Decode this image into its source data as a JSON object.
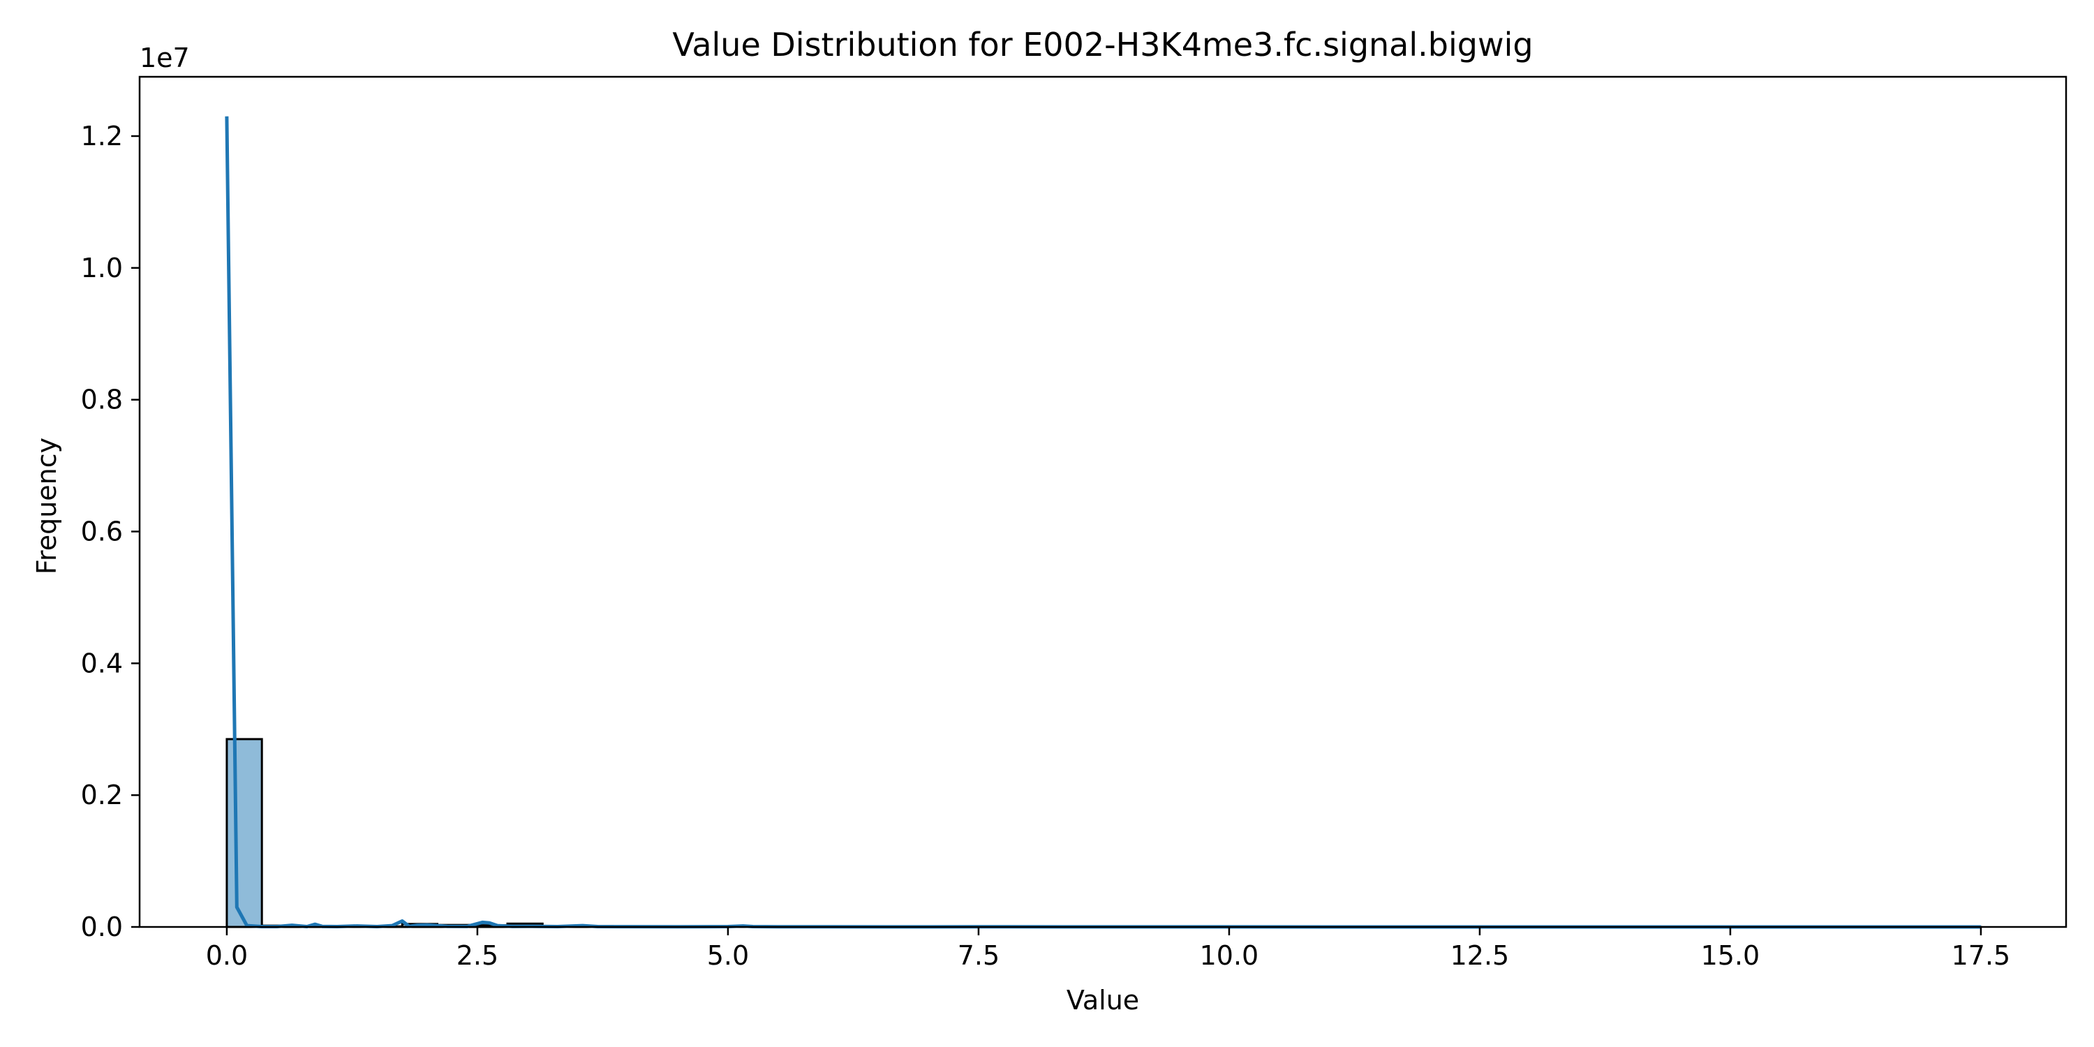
{
  "chart_data": {
    "type": "bar",
    "title": "Value Distribution for E002-H3K4me3.fc.signal.bigwig",
    "xlabel": "Value",
    "ylabel": "Frequency",
    "y_offset_label": "1e7",
    "y_scale": 10000000,
    "xlim": [
      -0.87,
      18.35
    ],
    "ylim": [
      0,
      12900000
    ],
    "grid": false,
    "legend": "none",
    "x_ticks": [
      0.0,
      2.5,
      5.0,
      7.5,
      10.0,
      12.5,
      15.0,
      17.5
    ],
    "x_tick_labels": [
      "0.0",
      "2.5",
      "5.0",
      "7.5",
      "10.0",
      "12.5",
      "15.0",
      "17.5"
    ],
    "y_ticks": [
      0,
      2000000,
      4000000,
      6000000,
      8000000,
      10000000,
      12000000
    ],
    "y_tick_labels": [
      "0.0",
      "0.2",
      "0.4",
      "0.6",
      "0.8",
      "1.0",
      "1.2"
    ],
    "bin_edges": [
      0.0,
      0.35,
      0.7,
      1.05,
      1.4,
      1.75,
      2.1,
      2.45,
      2.8,
      3.15,
      3.5,
      3.85,
      4.2,
      4.55,
      4.9,
      5.25,
      5.6,
      5.95,
      6.3,
      6.65,
      7.0,
      7.35,
      7.7,
      8.05,
      8.4,
      8.75,
      9.1,
      9.45,
      9.8,
      10.15,
      10.5,
      10.85,
      11.2,
      11.55,
      11.9,
      12.25,
      12.6,
      12.95,
      13.3,
      13.65,
      14.0,
      14.35,
      14.7,
      15.05,
      15.4,
      15.75,
      16.1,
      16.45,
      16.8,
      17.15,
      17.5
    ],
    "values": [
      2850000,
      20000,
      10000,
      15000,
      8000,
      45000,
      30000,
      25000,
      50000,
      10000,
      12000,
      6000,
      5000,
      4000,
      3000,
      8000,
      3000,
      2000,
      2000,
      1500,
      1500,
      1200,
      1000,
      1000,
      800,
      800,
      600,
      600,
      500,
      500,
      400,
      400,
      300,
      300,
      300,
      200,
      200,
      200,
      200,
      150,
      150,
      150,
      100,
      100,
      100,
      100,
      100,
      100,
      100,
      100
    ],
    "kde": {
      "x": [
        0.0,
        0.1,
        0.2,
        0.35,
        0.5,
        0.65,
        0.8,
        0.88,
        0.95,
        1.1,
        1.3,
        1.5,
        1.65,
        1.75,
        1.82,
        1.9,
        2.0,
        2.2,
        2.4,
        2.55,
        2.62,
        2.7,
        2.85,
        3.0,
        3.3,
        3.55,
        3.7,
        4.0,
        4.5,
        5.0,
        5.15,
        5.25,
        5.5,
        6.0,
        7.0,
        7.8,
        8.5,
        10.0,
        12.5,
        15.0,
        17.5
      ],
      "y": [
        12300000,
        300000,
        20000,
        5000,
        5000,
        25000,
        5000,
        40000,
        8000,
        5000,
        15000,
        5000,
        20000,
        90000,
        10000,
        25000,
        30000,
        10000,
        8000,
        70000,
        60000,
        20000,
        8000,
        10000,
        5000,
        20000,
        5000,
        4000,
        3000,
        5000,
        15000,
        5000,
        3000,
        2000,
        1500,
        3000,
        1000,
        800,
        500,
        300,
        200
      ]
    },
    "colors": {
      "bar_fill": "#1f77b4",
      "bar_fill_opacity": 0.5,
      "bar_edge": "#000000",
      "kde_line": "#1f77b4"
    }
  }
}
